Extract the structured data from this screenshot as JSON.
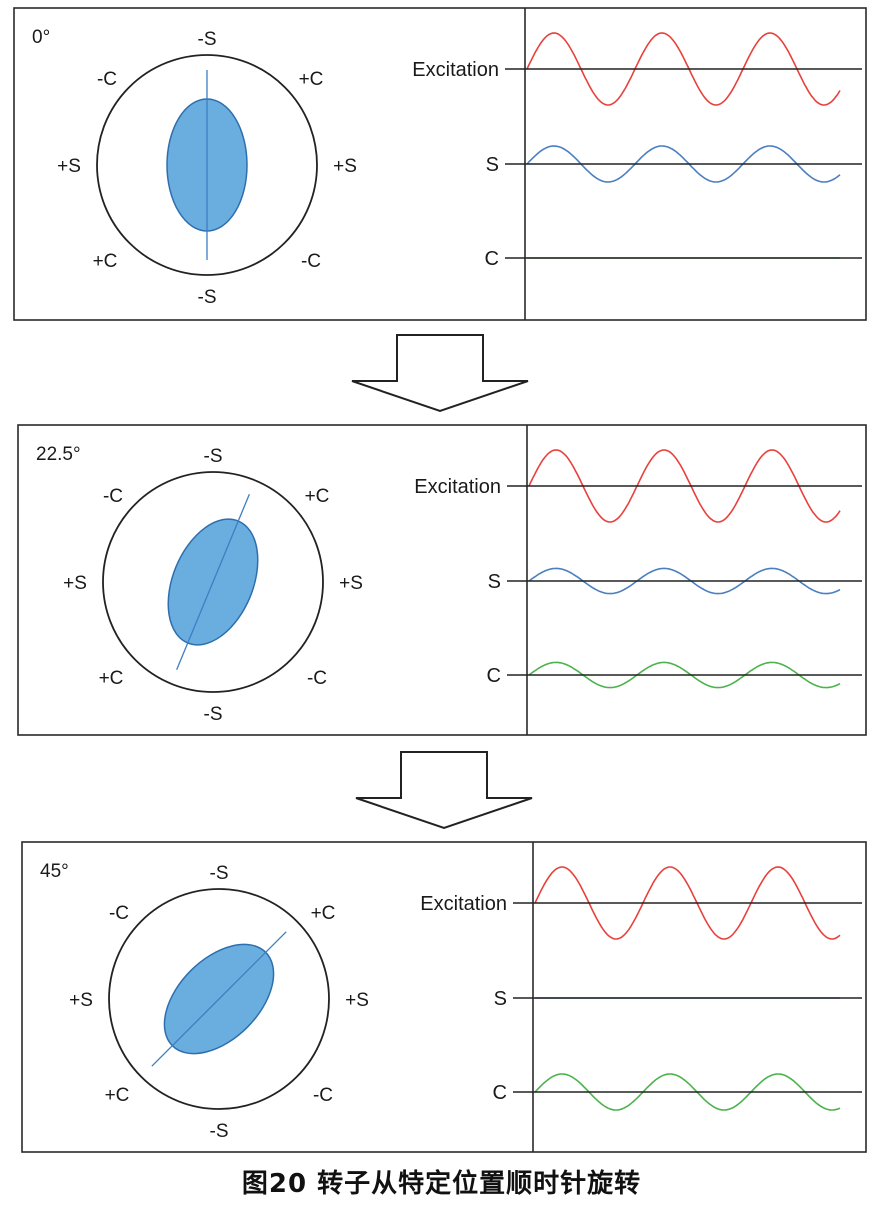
{
  "caption": "图20 转子从特定位置顺时针旋转",
  "labels": {
    "top_s": "-S",
    "bottom_s": "-S",
    "left_s": "+S",
    "right_s": "+S",
    "upper_left_c": "-C",
    "lower_right_c": "-C",
    "upper_right_c": "+C",
    "lower_left_c": "+C"
  },
  "signal_labels": {
    "excitation": "Excitation",
    "s": "S",
    "c": "C"
  },
  "colors": {
    "excitation": "#e8413c",
    "s": "#4a7fc1",
    "c": "#4cb34c",
    "rotor_fill": "#6aaee0",
    "rotor_stroke": "#2d6fae",
    "axis": "#3b7fc4"
  },
  "panels": [
    {
      "angle_label": "0°",
      "rotation_deg": 0,
      "s_amplitude": 0.5,
      "c_amplitude": 0
    },
    {
      "angle_label": "22.5°",
      "rotation_deg": 22.5,
      "s_amplitude": 0.35,
      "c_amplitude": 0.35
    },
    {
      "angle_label": "45°",
      "rotation_deg": 45,
      "s_amplitude": 0,
      "c_amplitude": 0.5
    }
  ]
}
